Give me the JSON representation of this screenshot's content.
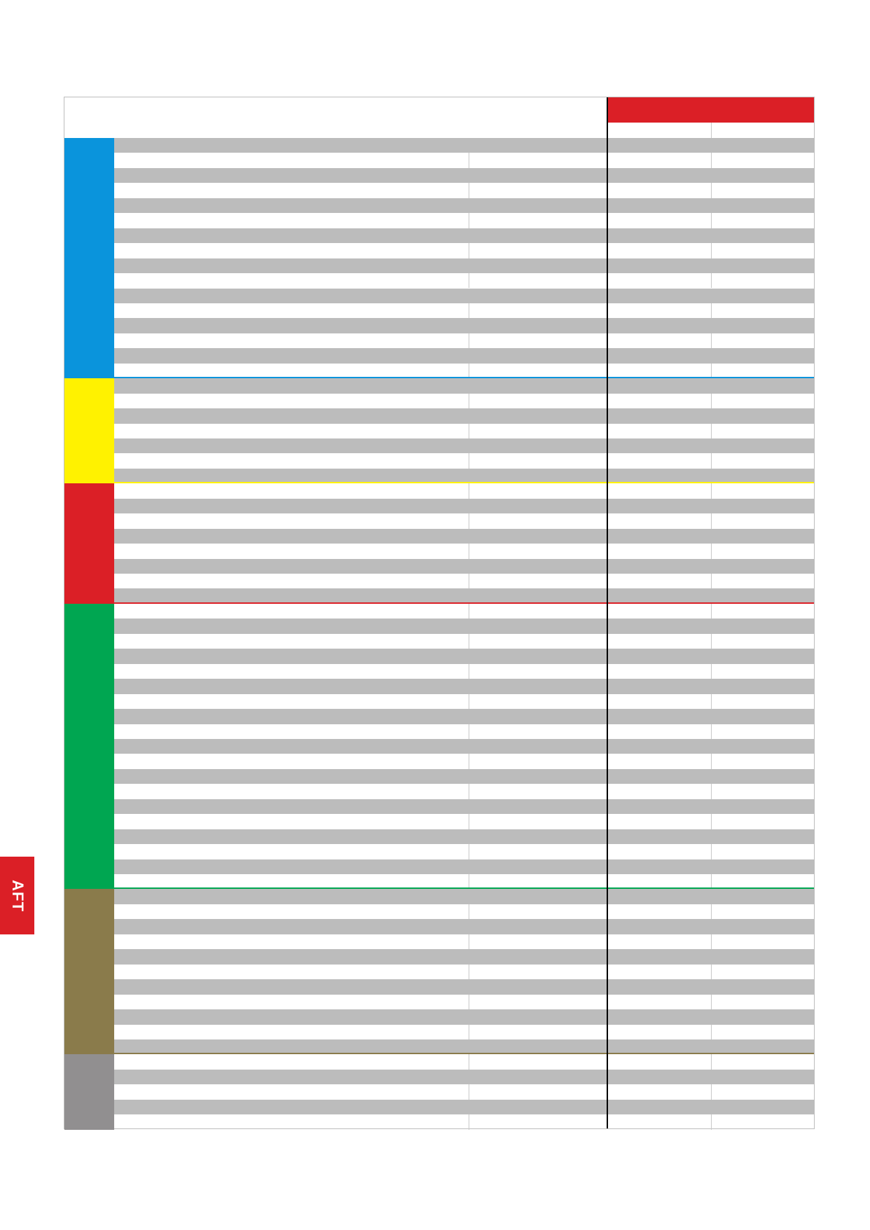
{
  "header": {
    "accent_color": "#db1f26"
  },
  "side_tab": {
    "label": "AFT",
    "color": "#db1f26"
  },
  "colors": {
    "stripe": "#bcbcbc",
    "divider": "#c8c8c8"
  },
  "sections": [
    {
      "color": "#0a94dc",
      "rows": 16
    },
    {
      "color": "#fff200",
      "rows": 7
    },
    {
      "color": "#db1f26",
      "rows": 8
    },
    {
      "color": "#00a651",
      "rows": 19
    },
    {
      "color": "#8a7b4b",
      "rows": 11
    },
    {
      "color": "#918f90",
      "rows": 5
    }
  ]
}
